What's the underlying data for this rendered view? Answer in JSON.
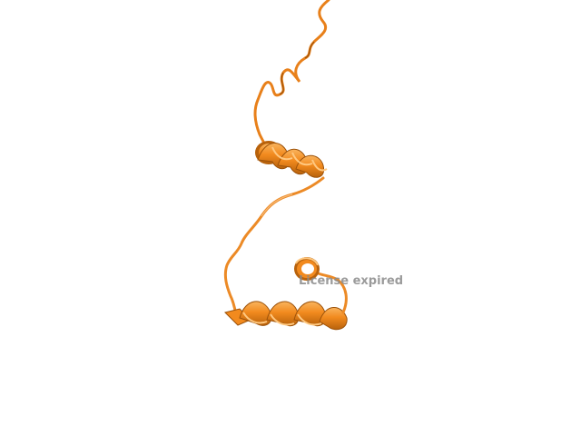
{
  "watermark": {
    "text": "License expired"
  },
  "structure": {
    "representation": "cartoon",
    "color": "#f28a1e",
    "shadow_color": "#b8620c",
    "highlight_color": "#f9b45e"
  }
}
